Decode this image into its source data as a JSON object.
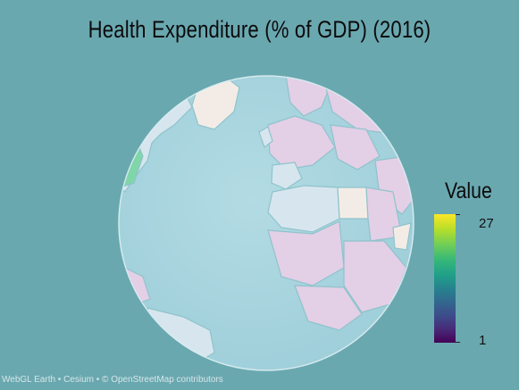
{
  "title": "Health Expenditure (% of GDP) (2016)",
  "legend": {
    "title": "Value",
    "max_label": "27",
    "min_label": "1",
    "colorscale": [
      "#440154",
      "#3e4989",
      "#26828e",
      "#35b779",
      "#fde725"
    ]
  },
  "attribution": "WebGL Earth • Cesium • © OpenStreetMap contributors",
  "colors": {
    "background": "#6aa8b0",
    "ocean": "#a9d6e0",
    "low_value_land": "#e3cfe6",
    "mid_value_land": "#d7e6ee",
    "high_value_land": "#7fd6a8",
    "no_data_land": "#f3ece6"
  }
}
